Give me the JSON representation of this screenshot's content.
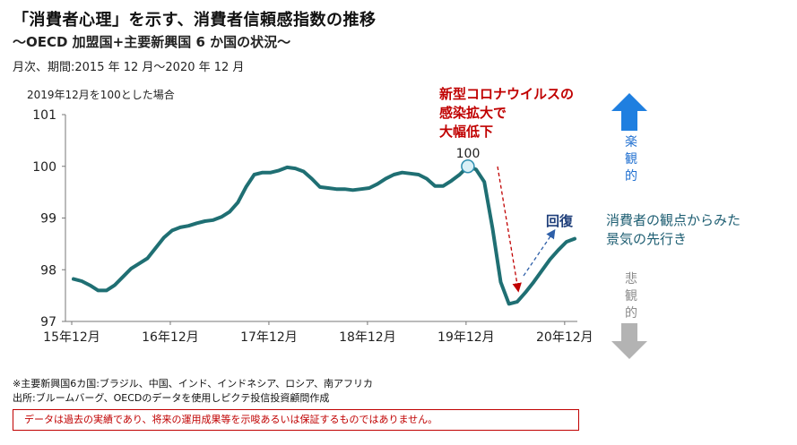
{
  "header": {
    "title": "「消費者心理」を示す、消費者信頼感指数の推移",
    "subtitle": "～OECD 加盟国+主要新興国 6 か国の状況～",
    "period": "月次、期間:2015 年 12 月～2020 年 12 月"
  },
  "annotations": {
    "base_note": "2019年12月を100とした場合",
    "covid_lines": [
      "新型コロナウイルスの",
      "感染拡大で",
      "大幅低下"
    ],
    "recovery": "回復",
    "leading_lines": [
      "消費者の観点からみた",
      "景気の先行き"
    ],
    "peak_label": "100",
    "optimistic": "楽観的",
    "pessimistic": "悲観的"
  },
  "footer": {
    "note1": "※主要新興国6カ国:ブラジル、中国、インド、インドネシア、ロシア、南アフリカ",
    "note2": "出所:ブルームバーグ、OECDのデータを使用しピクテ投信投資顧問作成",
    "disclaimer": "データは過去の実績であり、将来の運用成果等を示唆あるいは保証するものではありません。"
  },
  "colors": {
    "line": "#1f6f73",
    "peak_marker_fill": "#d9f0f7",
    "peak_marker_stroke": "#2e8fb0",
    "arrow_up": "#1f7fe0",
    "arrow_down": "#b3b3b3",
    "covid_arrow": "#c00000",
    "recovery_arrow": "#2e5fa8"
  },
  "icons": {
    "optimistic": "up-arrow-icon",
    "pessimistic": "down-arrow-icon"
  },
  "chart_data": {
    "type": "line",
    "xlabel": "",
    "ylabel": "",
    "ylim": [
      97,
      101
    ],
    "yticks": [
      97,
      98,
      99,
      100,
      101
    ],
    "xtick_labels": [
      "15年12月",
      "16年12月",
      "17年12月",
      "18年12月",
      "19年12月",
      "20年12月"
    ],
    "grid": false,
    "legend": "none",
    "series": [
      {
        "values": [
          97.82,
          97.78,
          97.7,
          97.6,
          97.6,
          97.7,
          97.86,
          98.02,
          98.12,
          98.22,
          98.42,
          98.62,
          98.76,
          98.82,
          98.85,
          98.9,
          98.94,
          98.96,
          99.02,
          99.12,
          99.3,
          99.6,
          99.84,
          99.88,
          99.88,
          99.92,
          99.98,
          99.96,
          99.9,
          99.76,
          99.6,
          99.58,
          99.56,
          99.56,
          99.54,
          99.56,
          99.58,
          99.66,
          99.76,
          99.84,
          99.88,
          99.86,
          99.84,
          99.76,
          99.62,
          99.62,
          99.72,
          99.84,
          100.0,
          99.94,
          99.7,
          98.8,
          97.76,
          97.34,
          97.38,
          97.56,
          97.76,
          97.98,
          98.2,
          98.38,
          98.54,
          98.6
        ]
      }
    ]
  }
}
